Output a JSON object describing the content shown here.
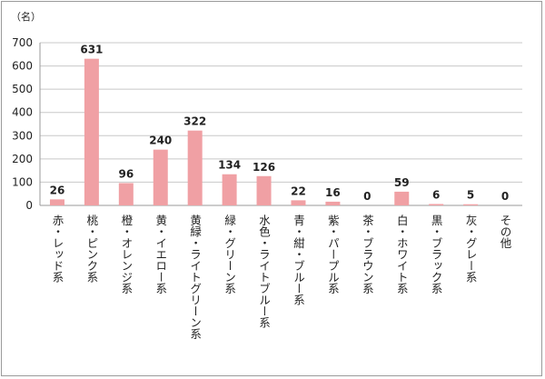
{
  "chart_data": {
    "type": "bar",
    "unit_label": "（名）",
    "categories": [
      "赤・レッド系",
      "桃・ピンク系",
      "橙・オレンジ系",
      "黄・イエロー系",
      "黄緑・ライトグリーン系",
      "緑・グリーン系",
      "水色・ライトブルー系",
      "青・紺・ブルー系",
      "紫・パープル系",
      "茶・ブラウン系",
      "白・ホワイト系",
      "黒・ブラック系",
      "灰・グレー系",
      "その他"
    ],
    "values": [
      26,
      631,
      96,
      240,
      322,
      134,
      126,
      22,
      16,
      0,
      59,
      6,
      5,
      0
    ],
    "ylim": [
      0,
      700
    ],
    "yticks": [
      0,
      100,
      200,
      300,
      400,
      500,
      600,
      700
    ],
    "grid": true,
    "legend": "none",
    "colors": {
      "bar": "#f0a0a4",
      "grid": "#c8c8c8",
      "axis": "#999999"
    }
  }
}
